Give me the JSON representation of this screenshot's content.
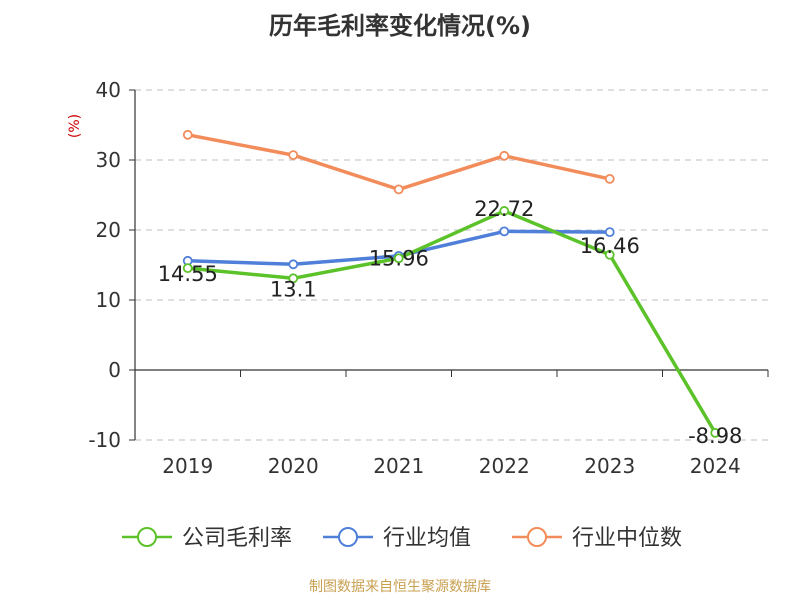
{
  "title": "历年毛利率变化情况(%)",
  "footer": "制图数据来自恒生聚源数据库",
  "chart_data": {
    "type": "line",
    "title": "历年毛利率变化情况(%)",
    "ylabel": "(%)",
    "xlabel": "",
    "categories": [
      "2019",
      "2020",
      "2021",
      "2022",
      "2023",
      "2024"
    ],
    "yticks": [
      "40",
      "30",
      "20",
      "10",
      "0",
      "-10"
    ],
    "ylim": [
      -10,
      40
    ],
    "grid": "horizontal dashed",
    "legend_placement": "bottom",
    "series": [
      {
        "name": "公司毛利率",
        "color": "#5cc22a",
        "values": [
          14.55,
          13.1,
          15.96,
          22.72,
          16.46,
          -8.98
        ],
        "labels": [
          "14.55",
          "13.1",
          "15.96",
          "22.72",
          "16.46",
          "-8.98"
        ]
      },
      {
        "name": "行业均值",
        "color": "#4f7fd8",
        "values": [
          15.6,
          15.1,
          16.3,
          19.8,
          19.7,
          null
        ]
      },
      {
        "name": "行业中位数",
        "color": "#f28c5a",
        "values": [
          33.6,
          30.7,
          25.8,
          30.6,
          27.3,
          null
        ]
      }
    ]
  }
}
